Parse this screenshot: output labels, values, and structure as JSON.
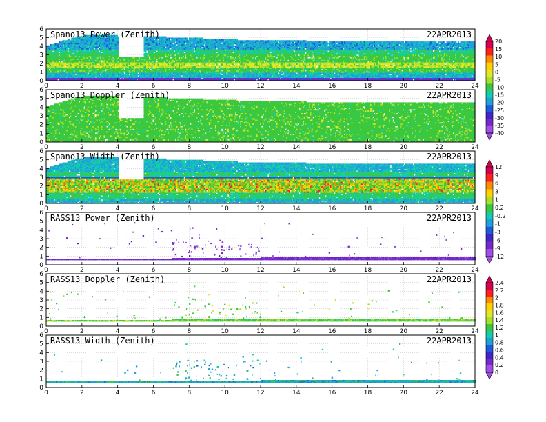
{
  "colorbars": {
    "power": [
      "20",
      "15",
      "10",
      "5",
      "0",
      "-5",
      "-10",
      "-15",
      "-20",
      "-25",
      "-30",
      "-35",
      "-40"
    ],
    "width": [
      "12",
      "9",
      "6",
      "3",
      "1",
      "0.2",
      "-0.2",
      "-1",
      "-3",
      "-6",
      "-9",
      "-12"
    ],
    "rass": [
      "2.4",
      "2.2",
      "2",
      "1.8",
      "1.6",
      "1.4",
      "1.2",
      "1",
      "0.8",
      "0.6",
      "0.4",
      "0.2",
      "0"
    ],
    "colors": {
      "power": [
        "#d70050",
        "#ff2020",
        "#ff8c00",
        "#ffd200",
        "#e6e629",
        "#a8e12a",
        "#3cc83c",
        "#14cdaa",
        "#1ea0dc",
        "#1e5adc",
        "#3c28c8",
        "#7828c8",
        "#a050e6"
      ],
      "width": [
        "#d70050",
        "#ff2020",
        "#ff8c00",
        "#ffd200",
        "#a8e12a",
        "#3cc83c",
        "#14cdaa",
        "#1ea0dc",
        "#1e5adc",
        "#3c28c8",
        "#7828c8",
        "#a050e6"
      ],
      "rass": [
        "#d70050",
        "#ff2020",
        "#ff8c00",
        "#ffd200",
        "#e6e629",
        "#a8e12a",
        "#3cc83c",
        "#14cdaa",
        "#1ea0dc",
        "#1e5adc",
        "#3c28c8",
        "#7828c8",
        "#a050e6"
      ]
    }
  },
  "chart_data": [
    {
      "type": "heatmap",
      "title": "Spano13 Power (Zenith)",
      "date": "22APR2013",
      "xlim": [
        0,
        24
      ],
      "ylim": [
        0,
        6
      ],
      "xticks": [
        "0",
        "2",
        "4",
        "6",
        "8",
        "10",
        "12",
        "14",
        "16",
        "18",
        "20",
        "22",
        "24"
      ],
      "yticks": [
        "0",
        "1",
        "2",
        "3",
        "4",
        "5",
        "6"
      ],
      "colorbar": "power",
      "gap_hours": [
        [
          4.0,
          5.4
        ]
      ],
      "top_km": [
        [
          0,
          4.0
        ],
        [
          1.6,
          5.0
        ],
        [
          2.6,
          5.3
        ],
        [
          5.4,
          5.1
        ],
        [
          12,
          4.6
        ],
        [
          17,
          4.5
        ],
        [
          24,
          4.4
        ]
      ]
    },
    {
      "type": "heatmap",
      "title": "Spano13 Doppler (Zenith)",
      "date": "22APR2013",
      "xlim": [
        0,
        24
      ],
      "ylim": [
        0,
        6
      ],
      "xticks": [
        "0",
        "2",
        "4",
        "6",
        "8",
        "10",
        "12",
        "14",
        "16",
        "18",
        "20",
        "22",
        "24"
      ],
      "yticks": [
        "0",
        "1",
        "2",
        "3",
        "4",
        "5",
        "6"
      ],
      "colorbar": "power",
      "gap_hours": [
        [
          4.0,
          5.4
        ]
      ],
      "top_km": [
        [
          0,
          4.0
        ],
        [
          1.6,
          5.0
        ],
        [
          2.6,
          5.3
        ],
        [
          5.4,
          5.1
        ],
        [
          12,
          4.6
        ],
        [
          17,
          4.5
        ],
        [
          24,
          4.4
        ]
      ]
    },
    {
      "type": "heatmap",
      "title": "Spano13 Width (Zenith)",
      "date": "22APR2013",
      "xlim": [
        0,
        24
      ],
      "ylim": [
        0,
        6
      ],
      "xticks": [
        "0",
        "2",
        "4",
        "6",
        "8",
        "10",
        "12",
        "14",
        "16",
        "18",
        "20",
        "22",
        "24"
      ],
      "yticks": [
        "0",
        "1",
        "2",
        "3",
        "4",
        "5",
        "6"
      ],
      "colorbar": "width",
      "gap_hours": [
        [
          4.0,
          5.4
        ]
      ],
      "top_km": [
        [
          0,
          4.0
        ],
        [
          1.6,
          5.0
        ],
        [
          2.6,
          5.3
        ],
        [
          5.4,
          5.1
        ],
        [
          12,
          4.6
        ],
        [
          17,
          4.5
        ],
        [
          24,
          4.4
        ]
      ]
    },
    {
      "type": "heatmap",
      "title": "RASS13 Power (Zenith)",
      "date": "22APR2013",
      "xlim": [
        0,
        24
      ],
      "ylim": [
        0,
        6
      ],
      "xticks": [
        "0",
        "2",
        "4",
        "6",
        "8",
        "10",
        "12",
        "14",
        "16",
        "18",
        "20",
        "22",
        "24"
      ],
      "yticks": [
        "0",
        "1",
        "2",
        "3",
        "4",
        "5",
        "6"
      ],
      "colorbar": "width",
      "band_km": [
        0.55,
        0.8
      ]
    },
    {
      "type": "heatmap",
      "title": "RASS13 Doppler (Zenith)",
      "date": "22APR2013",
      "xlim": [
        0,
        24
      ],
      "ylim": [
        0,
        6
      ],
      "xticks": [
        "0",
        "2",
        "4",
        "6",
        "8",
        "10",
        "12",
        "14",
        "16",
        "18",
        "20",
        "22",
        "24"
      ],
      "yticks": [
        "0",
        "1",
        "2",
        "3",
        "4",
        "5",
        "6"
      ],
      "colorbar": "rass",
      "band_km": [
        0.55,
        0.8
      ]
    },
    {
      "type": "heatmap",
      "title": "RASS13 Width (Zenith)",
      "date": "22APR2013",
      "xlim": [
        0,
        24
      ],
      "ylim": [
        0,
        6
      ],
      "xticks": [
        "0",
        "2",
        "4",
        "6",
        "8",
        "10",
        "12",
        "14",
        "16",
        "18",
        "20",
        "22",
        "24"
      ],
      "yticks": [
        "0",
        "1",
        "2",
        "3",
        "4",
        "5",
        "6"
      ],
      "colorbar": "rass",
      "band_km": [
        0.55,
        0.8
      ]
    }
  ]
}
